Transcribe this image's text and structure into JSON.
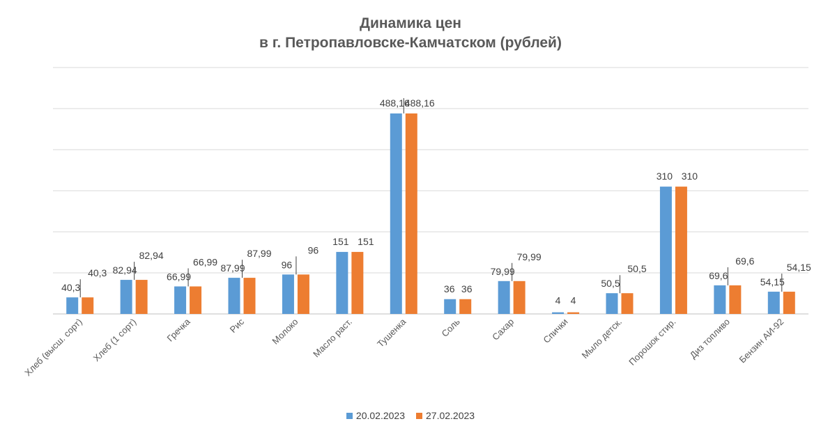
{
  "chart_data": {
    "type": "bar",
    "title_line1": "Динамика цен",
    "title_line2": "в г. Петропавловске-Камчатском (рублей)",
    "categories": [
      "Хлеб (высш. сорт)",
      "Хлеб (1 сорт)",
      "Гречка",
      "Рис",
      "Молоко",
      "Масло раст.",
      "Тушенка",
      "Соль",
      "Сахар",
      "Спички",
      "Мыло детск.",
      "Порошок стир.",
      "Диз топливо",
      "Бензин АИ-92"
    ],
    "series": [
      {
        "name": "20.02.2023",
        "color": "#5B9BD5",
        "values": [
          40.3,
          82.94,
          66.99,
          87.99,
          96,
          151,
          488.16,
          36,
          79.99,
          4,
          50.5,
          310,
          69.6,
          54.15
        ],
        "labels": [
          "40,3",
          "82,94",
          "66,99",
          "87,99",
          "96",
          "151",
          "488,16",
          "36",
          "79,99",
          "4",
          "50,5",
          "310",
          "69,6",
          "54,15"
        ]
      },
      {
        "name": "27.02.2023",
        "color": "#ED7D31",
        "values": [
          40.3,
          82.94,
          66.99,
          87.99,
          96,
          151,
          488.16,
          36,
          79.99,
          4,
          50.5,
          310,
          69.6,
          54.15
        ],
        "labels": [
          "40,3",
          "82,94",
          "66,99",
          "87,99",
          "96",
          "151",
          "488,16",
          "36",
          "79,99",
          "4",
          "50,5",
          "310",
          "69,6",
          "54,15"
        ]
      }
    ],
    "ylim": [
      0,
      600
    ],
    "grid": true,
    "legend_position": "bottom"
  }
}
